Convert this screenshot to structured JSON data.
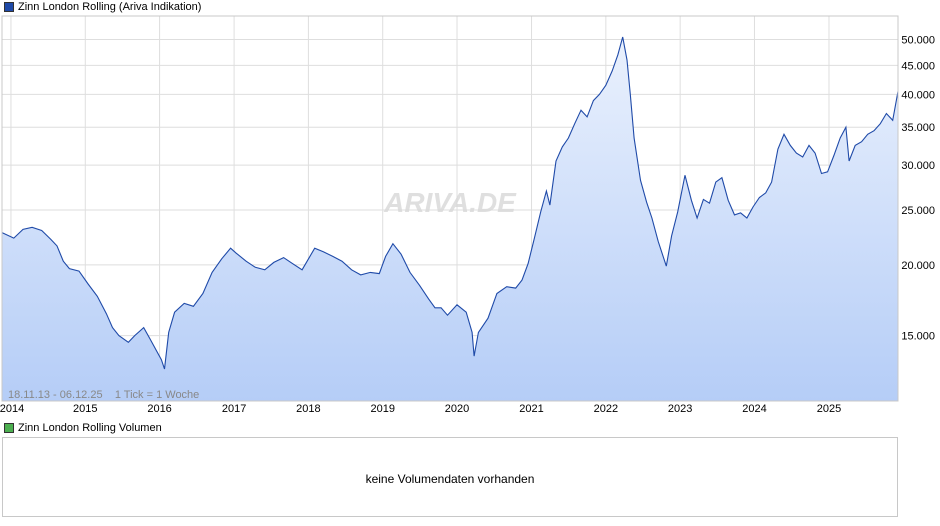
{
  "legend": {
    "price": "Zinn London Rolling (Ariva Indikation)",
    "price_color": "#1f4aa8",
    "volume": "Zinn London Rolling Volumen",
    "volume_color": "#4caf50"
  },
  "watermark": "ARIVA.DE",
  "footnote": "18.11.13 - 06.12.25    1 Tick = 1 Woche",
  "volume_panel": {
    "message": "keine Volumendaten vorhanden"
  },
  "chart_data": {
    "type": "area",
    "title": "",
    "xlabel": "",
    "ylabel": "",
    "y_scale": "log",
    "grid": true,
    "line_color": "#1f4aa8",
    "fill_top": "#eaf1fd",
    "fill_bottom": "#b5cdf7",
    "x_ticks": [
      "2014",
      "2015",
      "2016",
      "2017",
      "2018",
      "2019",
      "2020",
      "2021",
      "2022",
      "2023",
      "2024",
      "2025"
    ],
    "y_ticks": [
      {
        "value": 15000,
        "label": "15.000"
      },
      {
        "value": 20000,
        "label": "20.000"
      },
      {
        "value": 25000,
        "label": "25.000"
      },
      {
        "value": 30000,
        "label": "30.000"
      },
      {
        "value": 35000,
        "label": "35.000"
      },
      {
        "value": 40000,
        "label": "40.000"
      },
      {
        "value": 45000,
        "label": "45.000"
      },
      {
        "value": 50000,
        "label": "50.000"
      }
    ],
    "x_range": [
      "2013-11-18",
      "2025-12-06"
    ],
    "y_range": [
      11500,
      55000
    ],
    "series": [
      {
        "name": "",
        "points": [
          [
            "2013-11-18",
            22800
          ],
          [
            "2014-01-15",
            22300
          ],
          [
            "2014-03-01",
            23100
          ],
          [
            "2014-04-15",
            23300
          ],
          [
            "2014-06-01",
            23000
          ],
          [
            "2014-07-15",
            22200
          ],
          [
            "2014-08-15",
            21600
          ],
          [
            "2014-09-15",
            20300
          ],
          [
            "2014-10-15",
            19700
          ],
          [
            "2014-12-01",
            19500
          ],
          [
            "2015-01-15",
            18500
          ],
          [
            "2015-03-01",
            17600
          ],
          [
            "2015-04-15",
            16400
          ],
          [
            "2015-05-15",
            15500
          ],
          [
            "2015-06-15",
            15000
          ],
          [
            "2015-08-01",
            14600
          ],
          [
            "2015-09-01",
            15000
          ],
          [
            "2015-10-15",
            15500
          ],
          [
            "2015-11-15",
            14800
          ],
          [
            "2016-01-10",
            13600
          ],
          [
            "2016-01-25",
            13100
          ],
          [
            "2016-02-15",
            15200
          ],
          [
            "2016-03-15",
            16500
          ],
          [
            "2016-05-01",
            17100
          ],
          [
            "2016-06-15",
            16900
          ],
          [
            "2016-08-01",
            17800
          ],
          [
            "2016-09-15",
            19400
          ],
          [
            "2016-11-01",
            20500
          ],
          [
            "2016-12-15",
            21400
          ],
          [
            "2017-01-10",
            21000
          ],
          [
            "2017-03-01",
            20300
          ],
          [
            "2017-04-15",
            19800
          ],
          [
            "2017-06-01",
            19600
          ],
          [
            "2017-07-15",
            20200
          ],
          [
            "2017-09-01",
            20600
          ],
          [
            "2017-10-15",
            20100
          ],
          [
            "2017-12-01",
            19600
          ],
          [
            "2018-02-01",
            21400
          ],
          [
            "2018-03-15",
            21100
          ],
          [
            "2018-05-01",
            20700
          ],
          [
            "2018-06-15",
            20300
          ],
          [
            "2018-08-01",
            19600
          ],
          [
            "2018-09-15",
            19200
          ],
          [
            "2018-11-01",
            19400
          ],
          [
            "2018-12-15",
            19300
          ],
          [
            "2019-01-15",
            20700
          ],
          [
            "2019-02-20",
            21800
          ],
          [
            "2019-04-01",
            20900
          ],
          [
            "2019-05-15",
            19400
          ],
          [
            "2019-07-01",
            18400
          ],
          [
            "2019-08-15",
            17400
          ],
          [
            "2019-09-15",
            16800
          ],
          [
            "2019-10-15",
            16800
          ],
          [
            "2019-11-15",
            16300
          ],
          [
            "2020-01-01",
            17000
          ],
          [
            "2020-02-15",
            16500
          ],
          [
            "2020-03-15",
            15200
          ],
          [
            "2020-03-25",
            13800
          ],
          [
            "2020-04-15",
            15200
          ],
          [
            "2020-06-01",
            16100
          ],
          [
            "2020-07-15",
            17800
          ],
          [
            "2020-09-01",
            18300
          ],
          [
            "2020-10-15",
            18200
          ],
          [
            "2020-11-15",
            18800
          ],
          [
            "2020-12-15",
            20100
          ],
          [
            "2021-01-15",
            22300
          ],
          [
            "2021-02-15",
            24800
          ],
          [
            "2021-03-15",
            27000
          ],
          [
            "2021-04-01",
            25500
          ],
          [
            "2021-05-01",
            30500
          ],
          [
            "2021-06-01",
            32300
          ],
          [
            "2021-07-01",
            33500
          ],
          [
            "2021-08-01",
            35500
          ],
          [
            "2021-09-01",
            37500
          ],
          [
            "2021-10-01",
            36500
          ],
          [
            "2021-11-01",
            39000
          ],
          [
            "2021-12-01",
            40000
          ],
          [
            "2022-01-01",
            41500
          ],
          [
            "2022-02-01",
            44000
          ],
          [
            "2022-03-01",
            47000
          ],
          [
            "2022-03-25",
            50500
          ],
          [
            "2022-04-15",
            46000
          ],
          [
            "2022-05-01",
            40000
          ],
          [
            "2022-05-20",
            33500
          ],
          [
            "2022-06-20",
            28200
          ],
          [
            "2022-07-20",
            25800
          ],
          [
            "2022-08-15",
            24200
          ],
          [
            "2022-09-15",
            22000
          ],
          [
            "2022-10-25",
            19900
          ],
          [
            "2022-11-20",
            22500
          ],
          [
            "2022-12-20",
            24800
          ],
          [
            "2023-01-25",
            28800
          ],
          [
            "2023-02-25",
            26000
          ],
          [
            "2023-03-25",
            24200
          ],
          [
            "2023-04-25",
            26100
          ],
          [
            "2023-05-25",
            25700
          ],
          [
            "2023-06-25",
            28000
          ],
          [
            "2023-07-25",
            28500
          ],
          [
            "2023-08-25",
            26000
          ],
          [
            "2023-09-25",
            24500
          ],
          [
            "2023-10-25",
            24700
          ],
          [
            "2023-11-25",
            24200
          ],
          [
            "2023-12-25",
            25300
          ],
          [
            "2024-01-25",
            26300
          ],
          [
            "2024-02-25",
            26800
          ],
          [
            "2024-03-25",
            28000
          ],
          [
            "2024-04-25",
            32000
          ],
          [
            "2024-05-25",
            34000
          ],
          [
            "2024-06-25",
            32500
          ],
          [
            "2024-07-25",
            31500
          ],
          [
            "2024-08-25",
            31000
          ],
          [
            "2024-09-25",
            32500
          ],
          [
            "2024-10-25",
            31500
          ],
          [
            "2024-11-25",
            29000
          ],
          [
            "2024-12-25",
            29200
          ],
          [
            "2025-01-25",
            31200
          ],
          [
            "2025-02-25",
            33500
          ],
          [
            "2025-03-25",
            35000
          ],
          [
            "2025-04-10",
            30500
          ],
          [
            "2025-05-10",
            32500
          ],
          [
            "2025-06-10",
            33000
          ],
          [
            "2025-07-10",
            34000
          ],
          [
            "2025-08-10",
            34500
          ],
          [
            "2025-09-10",
            35500
          ],
          [
            "2025-10-10",
            37000
          ],
          [
            "2025-11-10",
            36000
          ],
          [
            "2025-12-06",
            40500
          ]
        ]
      }
    ]
  }
}
